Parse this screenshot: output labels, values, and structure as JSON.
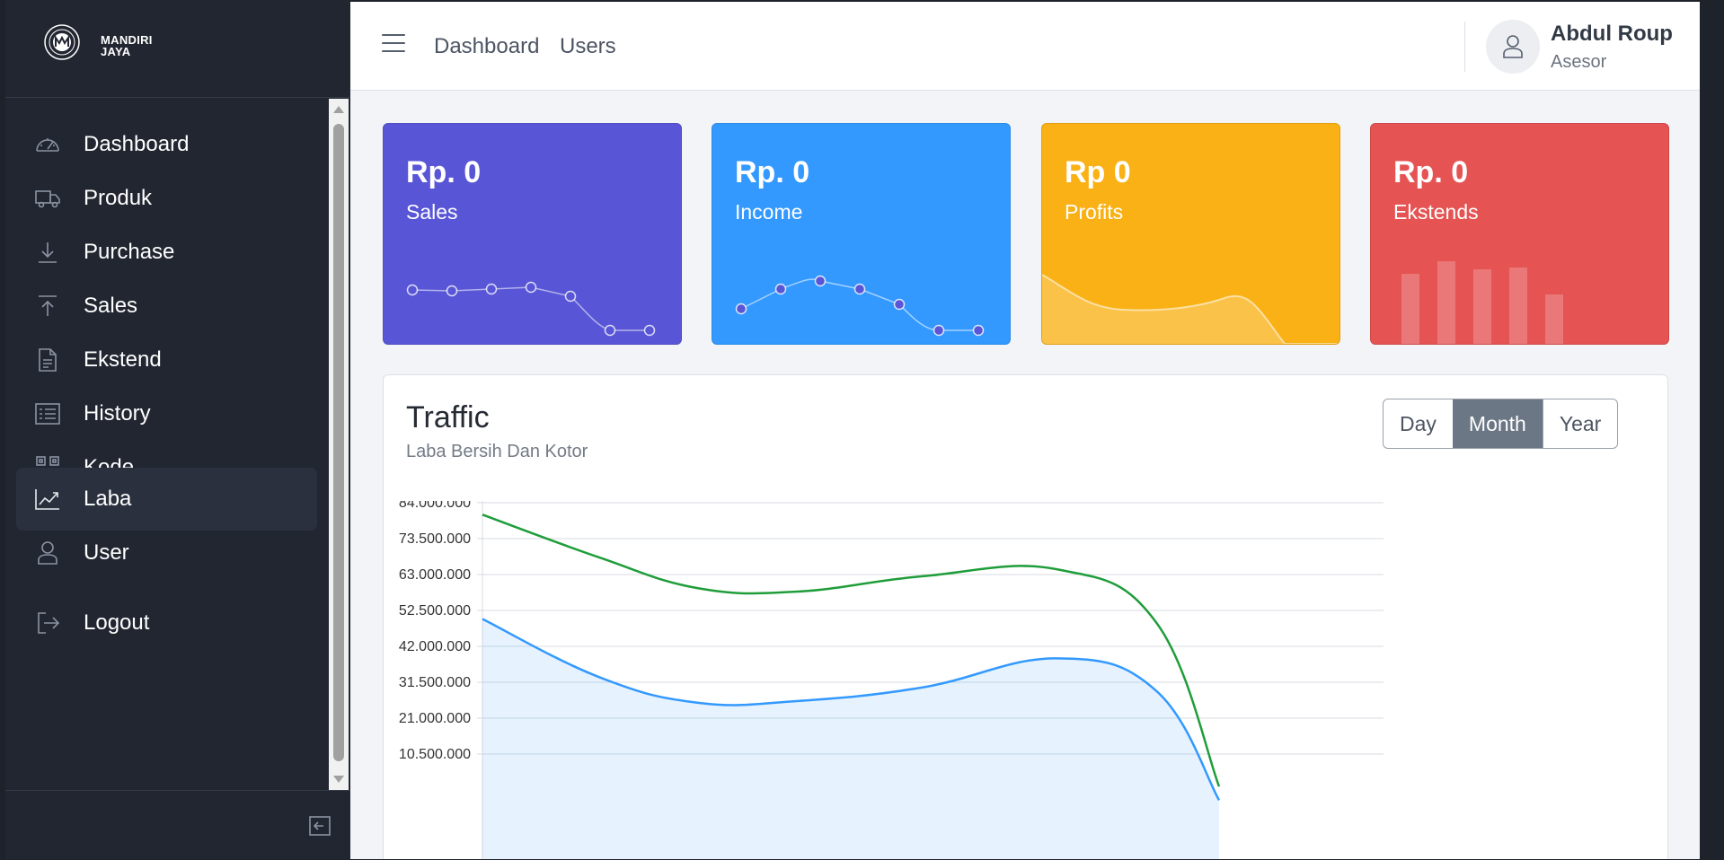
{
  "brand": {
    "line1": "MANDIRI",
    "line2": "JAYA"
  },
  "sidebar": {
    "items": [
      {
        "label": "Dashboard",
        "icon": "speedometer-icon"
      },
      {
        "label": "Produk",
        "icon": "truck-icon"
      },
      {
        "label": "Purchase",
        "icon": "download-arrow-icon"
      },
      {
        "label": "Sales",
        "icon": "upload-arrow-icon"
      },
      {
        "label": "Ekstend",
        "icon": "document-icon"
      },
      {
        "label": "History",
        "icon": "list-icon"
      },
      {
        "label": "Kode",
        "icon": "qrcode-icon"
      },
      {
        "label": "Laba",
        "icon": "chart-line-icon",
        "active": true
      },
      {
        "label": "User",
        "icon": "user-icon"
      },
      {
        "label": "Logout",
        "icon": "logout-icon"
      }
    ]
  },
  "header": {
    "links": [
      "Dashboard",
      "Users"
    ],
    "user": {
      "name": "Abdul Roup",
      "role": "Asesor"
    }
  },
  "cards": [
    {
      "value": "Rp. 0",
      "label": "Sales",
      "color": "#5856d6"
    },
    {
      "value": "Rp. 0",
      "label": "Income",
      "color": "#3399ff"
    },
    {
      "value": "Rp 0",
      "label": "Profits",
      "color": "#f9b115"
    },
    {
      "value": "Rp. 0",
      "label": "Ekstends",
      "color": "#e55353"
    }
  ],
  "traffic": {
    "title": "Traffic",
    "subtitle": "Laba Bersih Dan Kotor",
    "range_options": [
      "Day",
      "Month",
      "Year"
    ],
    "range_selected": "Month"
  },
  "chart_data": {
    "type": "line",
    "y_ticks": [
      "84.000.000",
      "73.500.000",
      "63.000.000",
      "52.500.000",
      "42.000.000",
      "31.500.000",
      "21.000.000",
      "10.500.000"
    ],
    "ylim": [
      0,
      84000000
    ],
    "x": [
      0,
      1,
      2,
      3,
      4,
      5,
      6,
      7
    ],
    "series": [
      {
        "color": "#1f9d3a",
        "values": [
          80500000,
          68000000,
          59000000,
          58000000,
          62500000,
          64500000,
          49000000,
          1000000
        ],
        "fill": false
      },
      {
        "color": "#3399ff",
        "values": [
          50000000,
          33000000,
          25500000,
          26000000,
          30000000,
          38500000,
          29000000,
          -3000000
        ],
        "fill": true
      }
    ],
    "grid": true
  }
}
